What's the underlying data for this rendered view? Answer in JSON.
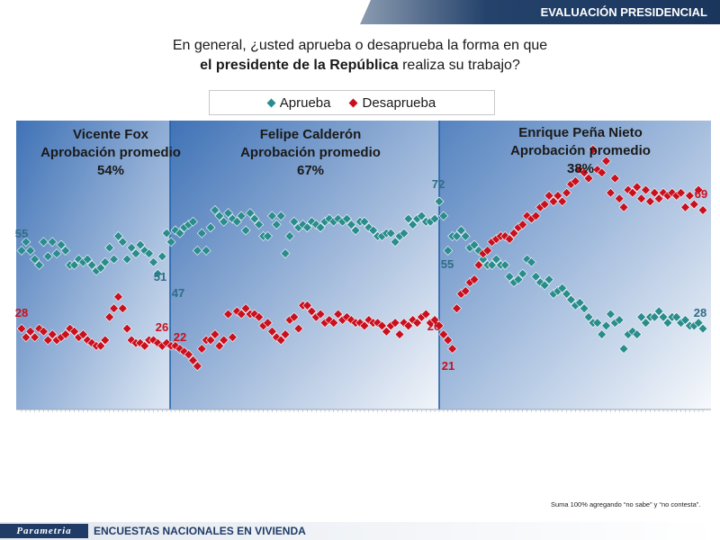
{
  "header": {
    "title": "EVALUACIÓN PRESIDENCIAL"
  },
  "question": {
    "line1": "En general, ¿usted aprueba o desaprueba la forma en que",
    "line2_bold": "el presidente de la República",
    "line2_rest": " realiza su trabajo?"
  },
  "legend": {
    "aprueba": "Aprueba",
    "desaprueba": "Desaprueba"
  },
  "colors": {
    "aprueba": "#2a8c8c",
    "desaprueba": "#c8101e",
    "bg_blue": "#4d7fbd",
    "divider": "#1f5fa8"
  },
  "periods": [
    {
      "name": "Vicente Fox",
      "subtitle": "Aprobación promedio",
      "value": "54%"
    },
    {
      "name": "Felipe Calderón",
      "subtitle": "Aprobación promedio",
      "value": "67%"
    },
    {
      "name": "Enrique Peña Nieto",
      "subtitle": "Aprobación promedio",
      "value": "38%"
    }
  ],
  "chart_data": {
    "type": "scatter",
    "ylim": [
      0,
      100
    ],
    "grid": false,
    "legend_position": "top-center",
    "series": [
      {
        "name": "Aprueba",
        "values": [
          55,
          58,
          55,
          52,
          50,
          58,
          53,
          58,
          54,
          57,
          55,
          50,
          50,
          52,
          51,
          52,
          50,
          48,
          49,
          51,
          56,
          52,
          60,
          58,
          52,
          56,
          54,
          57,
          55,
          54,
          51,
          47,
          53,
          61,
          58,
          62,
          61,
          63,
          64,
          65,
          55,
          61,
          55,
          63,
          69,
          67,
          65,
          68,
          66,
          65,
          67,
          62,
          68,
          66,
          64,
          60,
          60,
          67,
          64,
          67,
          54,
          60,
          65,
          63,
          64,
          63,
          65,
          64,
          63,
          65,
          66,
          65,
          66,
          65,
          66,
          64,
          62,
          65,
          65,
          63,
          62,
          60,
          60,
          61,
          61,
          58,
          60,
          61,
          66,
          64,
          66,
          67,
          65,
          65,
          66,
          72,
          67,
          55,
          60,
          60,
          62,
          60,
          56,
          57,
          55,
          52,
          50,
          50,
          52,
          50,
          50,
          46,
          44,
          45,
          47,
          52,
          51,
          46,
          44,
          43,
          45,
          40,
          41,
          42,
          40,
          38,
          36,
          37,
          35,
          32,
          30,
          30,
          26,
          29,
          33,
          30,
          31,
          21,
          26,
          27,
          26,
          32,
          30,
          32,
          32,
          34,
          32,
          30,
          32,
          32,
          30,
          31,
          29,
          29,
          30,
          28
        ]
      },
      {
        "name": "Desaprueba",
        "values": [
          28,
          25,
          27,
          25,
          28,
          27,
          24,
          26,
          24,
          25,
          26,
          28,
          27,
          25,
          26,
          24,
          23,
          22,
          22,
          24,
          32,
          35,
          39,
          35,
          28,
          24,
          23,
          23,
          22,
          24,
          24,
          23,
          22,
          23,
          22,
          22,
          21,
          20,
          19,
          17,
          15,
          21,
          24,
          24,
          26,
          22,
          24,
          33,
          25,
          34,
          33,
          35,
          33,
          33,
          32,
          29,
          30,
          27,
          25,
          24,
          26,
          31,
          32,
          28,
          36,
          36,
          34,
          32,
          33,
          30,
          31,
          30,
          33,
          31,
          32,
          31,
          30,
          30,
          29,
          31,
          30,
          30,
          29,
          27,
          29,
          30,
          26,
          30,
          29,
          31,
          30,
          32,
          33,
          30,
          31,
          29,
          26,
          24,
          21,
          35,
          40,
          41,
          44,
          45,
          50,
          54,
          55,
          58,
          59,
          60,
          60,
          59,
          61,
          63,
          64,
          67,
          66,
          67,
          70,
          71,
          74,
          72,
          74,
          72,
          75,
          78,
          79,
          83,
          82,
          80,
          90,
          83,
          82,
          86,
          75,
          80,
          73,
          70,
          76,
          75,
          77,
          73,
          76,
          72,
          75,
          73,
          75,
          74,
          75,
          74,
          75,
          70,
          74,
          71,
          76,
          69
        ]
      }
    ],
    "annotations": [
      {
        "label": "55",
        "series": "Aprueba"
      },
      {
        "label": "28",
        "series": "Desaprueba"
      },
      {
        "label": "51",
        "series": "Aprueba"
      },
      {
        "label": "26",
        "series": "Desaprueba"
      },
      {
        "label": "47",
        "series": "Aprueba"
      },
      {
        "label": "22",
        "series": "Desaprueba"
      },
      {
        "label": "72",
        "series": "Aprueba"
      },
      {
        "label": "26",
        "series": "Desaprueba"
      },
      {
        "label": "55",
        "series": "Aprueba"
      },
      {
        "label": "21",
        "series": "Desaprueba"
      },
      {
        "label": "69",
        "series": "Desaprueba"
      },
      {
        "label": "28",
        "series": "Aprueba"
      }
    ]
  },
  "footnote": "Suma 100% agregando “no sabe” y “no contesta”.",
  "footer": {
    "brand": "Parametria",
    "text": "ENCUESTAS NACIONALES  EN VIVIENDA"
  }
}
